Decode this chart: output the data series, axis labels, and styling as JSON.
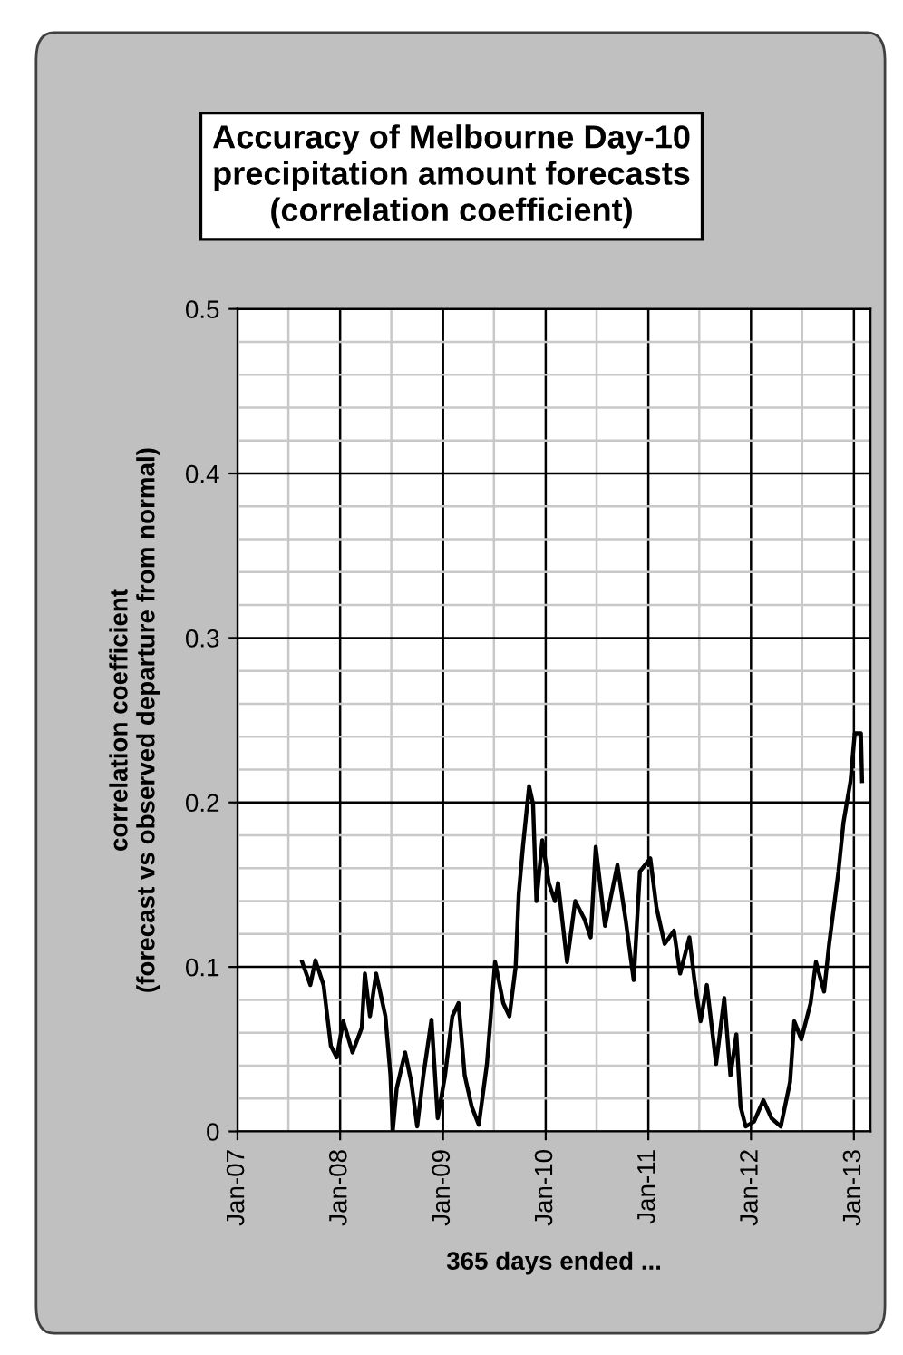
{
  "chart_data": {
    "type": "line",
    "title": "Accuracy of Melbourne Day-10\nprecipitation amount forecasts\n(correlation coefficient)",
    "xlabel": "365 days ended ...",
    "ylabel": "correlation coefficient\n(forecast vs observed departure from normal)",
    "x": [
      "2007-08-19",
      "2007-09-17",
      "2007-10-05",
      "2007-11-03",
      "2007-11-29",
      "2007-12-20",
      "2008-01-12",
      "2008-02-14",
      "2008-03-18",
      "2008-03-29",
      "2008-04-16",
      "2008-05-08",
      "2008-06-10",
      "2008-06-28",
      "2008-07-06",
      "2008-07-20",
      "2008-08-19",
      "2008-09-10",
      "2008-10-01",
      "2008-10-23",
      "2008-11-21",
      "2008-12-13",
      "2009-01-08",
      "2009-02-03",
      "2009-02-25",
      "2009-03-19",
      "2009-04-13",
      "2009-05-08",
      "2009-06-06",
      "2009-07-05",
      "2009-08-03",
      "2009-08-25",
      "2009-09-16",
      "2009-09-27",
      "2009-10-12",
      "2009-11-03",
      "2009-11-17",
      "2009-11-29",
      "2009-12-20",
      "2010-01-12",
      "2010-02-03",
      "2010-02-14",
      "2010-03-18",
      "2010-04-16",
      "2010-05-19",
      "2010-06-10",
      "2010-06-28",
      "2010-07-31",
      "2010-09-13",
      "2010-10-12",
      "2010-11-10",
      "2010-12-02",
      "2011-01-08",
      "2011-01-30",
      "2011-02-28",
      "2011-04-02",
      "2011-04-24",
      "2011-05-27",
      "2011-06-14",
      "2011-07-06",
      "2011-07-28",
      "2011-08-30",
      "2011-09-28",
      "2011-10-20",
      "2011-11-10",
      "2011-11-25",
      "2011-12-13",
      "2012-01-12",
      "2012-02-14",
      "2012-03-14",
      "2012-04-16",
      "2012-05-19",
      "2012-06-03",
      "2012-06-28",
      "2012-07-31",
      "2012-08-19",
      "2012-09-17",
      "2012-10-05",
      "2012-11-07",
      "2012-11-25",
      "2012-12-20",
      "2013-01-04",
      "2013-01-26",
      "2013-01-30"
    ],
    "series": [
      {
        "color": "#000000",
        "values": [
          0.103,
          0.089,
          0.104,
          0.089,
          0.052,
          0.045,
          0.067,
          0.048,
          0.063,
          0.096,
          0.07,
          0.096,
          0.07,
          0.034,
          0.0,
          0.026,
          0.048,
          0.03,
          0.003,
          0.034,
          0.068,
          0.008,
          0.034,
          0.07,
          0.078,
          0.034,
          0.015,
          0.004,
          0.041,
          0.103,
          0.078,
          0.07,
          0.1,
          0.144,
          0.173,
          0.21,
          0.199,
          0.14,
          0.177,
          0.151,
          0.14,
          0.151,
          0.103,
          0.14,
          0.129,
          0.118,
          0.173,
          0.125,
          0.162,
          0.129,
          0.092,
          0.158,
          0.166,
          0.136,
          0.114,
          0.122,
          0.096,
          0.118,
          0.092,
          0.067,
          0.089,
          0.041,
          0.081,
          0.034,
          0.059,
          0.015,
          0.003,
          0.006,
          0.019,
          0.008,
          0.003,
          0.03,
          0.067,
          0.056,
          0.078,
          0.103,
          0.085,
          0.114,
          0.158,
          0.188,
          0.213,
          0.242,
          0.242,
          0.213
        ]
      }
    ],
    "xlim": [
      "2007-01-01",
      "2013-03-01"
    ],
    "xticks": [
      {
        "value": "2007-01-01",
        "label": "Jan-07"
      },
      {
        "value": "2007-07-01",
        "label": null
      },
      {
        "value": "2008-01-01",
        "label": "Jan-08"
      },
      {
        "value": "2008-07-01",
        "label": null
      },
      {
        "value": "2009-01-01",
        "label": "Jan-09"
      },
      {
        "value": "2009-07-01",
        "label": null
      },
      {
        "value": "2010-01-01",
        "label": "Jan-10"
      },
      {
        "value": "2010-07-01",
        "label": null
      },
      {
        "value": "2011-01-01",
        "label": "Jan-11"
      },
      {
        "value": "2011-07-01",
        "label": null
      },
      {
        "value": "2012-01-01",
        "label": "Jan-12"
      },
      {
        "value": "2012-07-01",
        "label": null
      },
      {
        "value": "2013-01-01",
        "label": "Jan-13"
      }
    ],
    "ylim": [
      0,
      0.5
    ],
    "yticks": [
      0,
      {
        "value": 0.02,
        "label": null
      },
      {
        "value": 0.04,
        "label": null
      },
      {
        "value": 0.06,
        "label": null
      },
      {
        "value": 0.08,
        "label": null
      },
      0.1,
      {
        "value": 0.12,
        "label": null
      },
      {
        "value": 0.14,
        "label": null
      },
      {
        "value": 0.16,
        "label": null
      },
      {
        "value": 0.18,
        "label": null
      },
      0.2,
      {
        "value": 0.22,
        "label": null
      },
      {
        "value": 0.24,
        "label": null
      },
      {
        "value": 0.26,
        "label": null
      },
      {
        "value": 0.28,
        "label": null
      },
      0.3,
      {
        "value": 0.32,
        "label": null
      },
      {
        "value": 0.34,
        "label": null
      },
      {
        "value": 0.36,
        "label": null
      },
      {
        "value": 0.38,
        "label": null
      },
      0.4,
      {
        "value": 0.42,
        "label": null
      },
      {
        "value": 0.44,
        "label": null
      },
      {
        "value": 0.46,
        "label": null
      },
      {
        "value": 0.48,
        "label": null
      },
      0.5
    ],
    "grid": true,
    "marker": "none",
    "line_style": "solid",
    "legend": false
  }
}
